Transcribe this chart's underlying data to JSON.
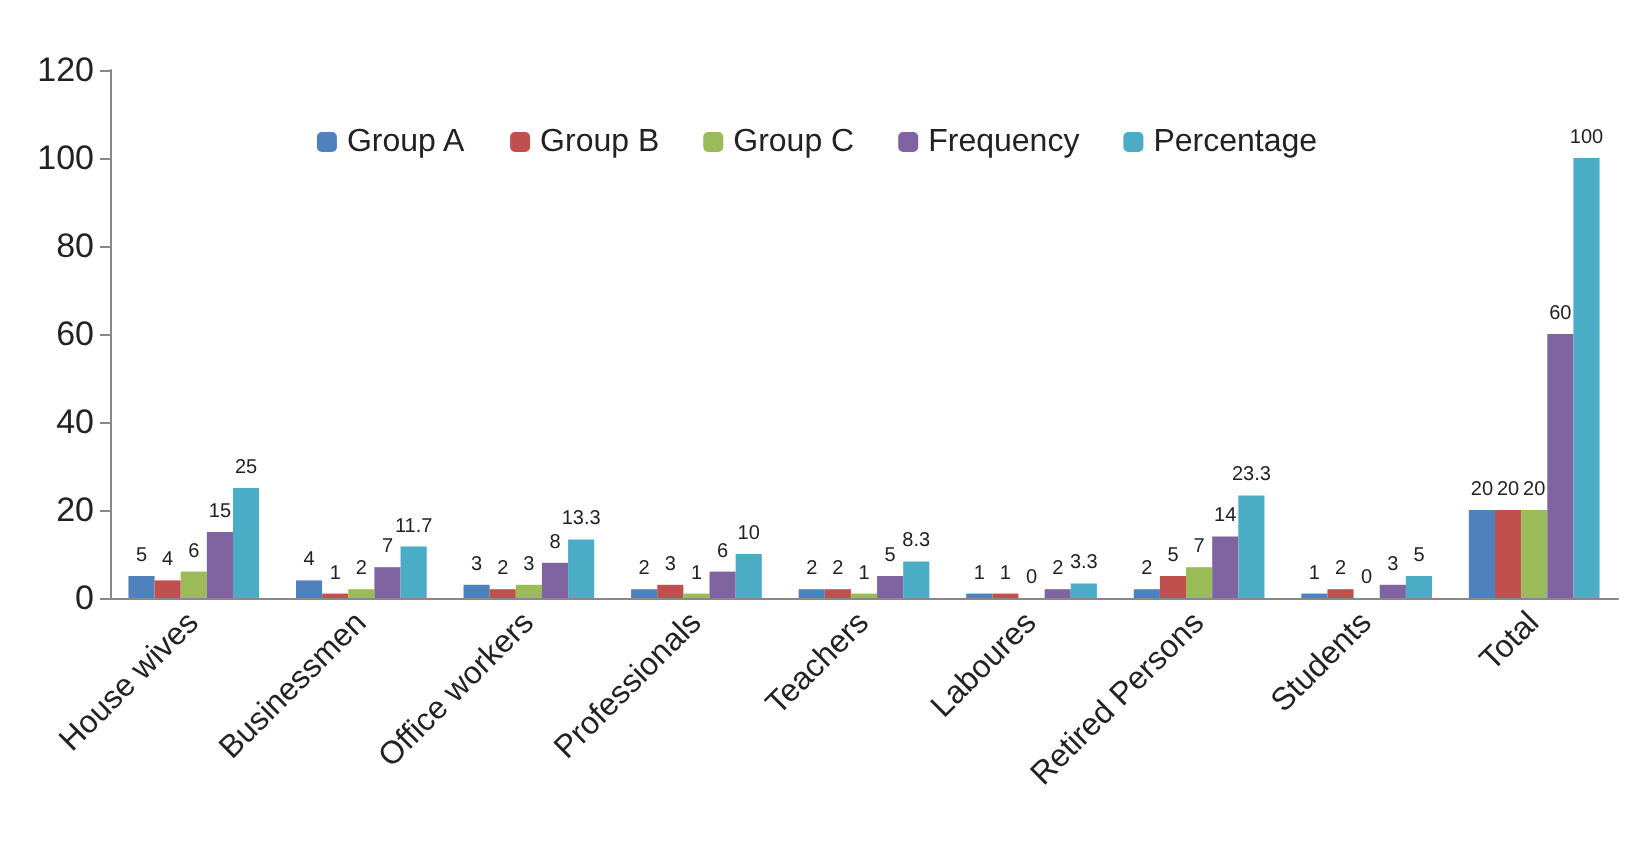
{
  "chart_data": {
    "type": "bar",
    "categories": [
      "House wives",
      "Businessmen",
      "Office workers",
      "Professionals",
      "Teachers",
      "Laboures",
      "Retired Persons",
      "Students",
      "Total"
    ],
    "series": [
      {
        "name": "Group A",
        "color": "#4f81bd",
        "values": [
          5,
          4,
          3,
          2,
          2,
          1,
          2,
          1,
          20
        ]
      },
      {
        "name": "Group B",
        "color": "#c0504d",
        "values": [
          4,
          1,
          2,
          3,
          2,
          1,
          5,
          2,
          20
        ]
      },
      {
        "name": "Group C",
        "color": "#9bbb59",
        "values": [
          6,
          2,
          3,
          1,
          1,
          0,
          7,
          0,
          20
        ]
      },
      {
        "name": "Frequency",
        "color": "#8064a2",
        "values": [
          15,
          7,
          8,
          6,
          5,
          2,
          14,
          3,
          60
        ]
      },
      {
        "name": "Percentage",
        "color": "#4bacc6",
        "values": [
          25,
          11.7,
          13.3,
          10,
          8.3,
          3.3,
          23.3,
          5,
          100
        ]
      }
    ],
    "ylim": [
      0,
      120
    ],
    "yticks": [
      0,
      20,
      40,
      60,
      80,
      100,
      120
    ],
    "grid": false,
    "legend": "top",
    "data_labels": true
  }
}
